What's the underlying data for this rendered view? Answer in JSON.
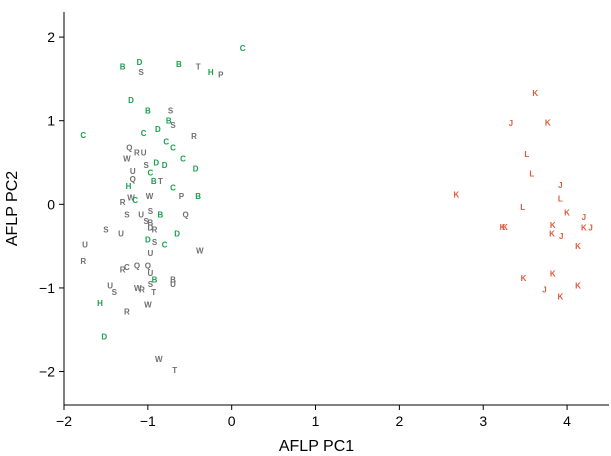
{
  "chart_data": {
    "type": "scatter",
    "xlabel": "AFLP PC1",
    "ylabel": "AFLP PC2",
    "xlim": [
      -2.0,
      4.5
    ],
    "ylim": [
      -2.4,
      2.3
    ],
    "xticks": [
      -2,
      -1,
      0,
      1,
      2,
      3,
      4
    ],
    "yticks": [
      -2,
      -1,
      0,
      1,
      2
    ],
    "tick_labels_x": [
      "−2",
      "−1",
      "0",
      "1",
      "2",
      "3",
      "4"
    ],
    "tick_labels_y": [
      "−2",
      "−1",
      "0",
      "1",
      "2"
    ],
    "grid": false,
    "colors": {
      "grey": "#6f6f6f",
      "green": "#1aa04f",
      "red": "#e05a3c"
    },
    "points": [
      {
        "label": "C",
        "x": 0.13,
        "y": 1.87,
        "color": "green"
      },
      {
        "label": "B",
        "x": -1.3,
        "y": 1.65,
        "color": "green"
      },
      {
        "label": "D",
        "x": -1.1,
        "y": 1.7,
        "color": "green"
      },
      {
        "label": "S",
        "x": -1.08,
        "y": 1.58,
        "color": "grey"
      },
      {
        "label": "B",
        "x": -0.63,
        "y": 1.68,
        "color": "green"
      },
      {
        "label": "T",
        "x": -0.4,
        "y": 1.65,
        "color": "grey"
      },
      {
        "label": "H",
        "x": -0.25,
        "y": 1.58,
        "color": "green"
      },
      {
        "label": "P",
        "x": -0.13,
        "y": 1.55,
        "color": "grey"
      },
      {
        "label": "D",
        "x": -1.2,
        "y": 1.25,
        "color": "green"
      },
      {
        "label": "B",
        "x": -1.0,
        "y": 1.12,
        "color": "green"
      },
      {
        "label": "S",
        "x": -0.73,
        "y": 1.12,
        "color": "grey"
      },
      {
        "label": "B",
        "x": -0.75,
        "y": 1.0,
        "color": "green"
      },
      {
        "label": "S",
        "x": -0.7,
        "y": 0.95,
        "color": "grey"
      },
      {
        "label": "C",
        "x": -1.77,
        "y": 0.83,
        "color": "green"
      },
      {
        "label": "C",
        "x": -1.05,
        "y": 0.85,
        "color": "green"
      },
      {
        "label": "D",
        "x": -0.88,
        "y": 0.9,
        "color": "green"
      },
      {
        "label": "R",
        "x": -0.45,
        "y": 0.82,
        "color": "grey"
      },
      {
        "label": "C",
        "x": -0.78,
        "y": 0.75,
        "color": "green"
      },
      {
        "label": "C",
        "x": -0.7,
        "y": 0.68,
        "color": "green"
      },
      {
        "label": "Q",
        "x": -1.22,
        "y": 0.68,
        "color": "grey"
      },
      {
        "label": "R",
        "x": -1.13,
        "y": 0.62,
        "color": "grey"
      },
      {
        "label": "U",
        "x": -1.05,
        "y": 0.62,
        "color": "grey"
      },
      {
        "label": "W",
        "x": -1.25,
        "y": 0.55,
        "color": "grey"
      },
      {
        "label": "C",
        "x": -0.58,
        "y": 0.55,
        "color": "green"
      },
      {
        "label": "S",
        "x": -1.02,
        "y": 0.47,
        "color": "grey"
      },
      {
        "label": "D",
        "x": -0.9,
        "y": 0.5,
        "color": "green"
      },
      {
        "label": "D",
        "x": -0.8,
        "y": 0.47,
        "color": "green"
      },
      {
        "label": "U",
        "x": -1.18,
        "y": 0.4,
        "color": "grey"
      },
      {
        "label": "D",
        "x": -0.43,
        "y": 0.43,
        "color": "green"
      },
      {
        "label": "C",
        "x": -0.97,
        "y": 0.38,
        "color": "green"
      },
      {
        "label": "Q",
        "x": -1.18,
        "y": 0.3,
        "color": "grey"
      },
      {
        "label": "B",
        "x": -0.93,
        "y": 0.28,
        "color": "green"
      },
      {
        "label": "T",
        "x": -0.85,
        "y": 0.28,
        "color": "grey"
      },
      {
        "label": "H",
        "x": -1.23,
        "y": 0.22,
        "color": "green"
      },
      {
        "label": "C",
        "x": -0.7,
        "y": 0.2,
        "color": "green"
      },
      {
        "label": "W",
        "x": -1.2,
        "y": 0.08,
        "color": "grey"
      },
      {
        "label": "C",
        "x": -1.15,
        "y": 0.05,
        "color": "green"
      },
      {
        "label": "W",
        "x": -0.98,
        "y": 0.1,
        "color": "grey"
      },
      {
        "label": "P",
        "x": -0.6,
        "y": 0.1,
        "color": "grey"
      },
      {
        "label": "B",
        "x": -0.4,
        "y": 0.1,
        "color": "green"
      },
      {
        "label": "R",
        "x": -1.3,
        "y": 0.03,
        "color": "grey"
      },
      {
        "label": "S",
        "x": -1.25,
        "y": -0.12,
        "color": "grey"
      },
      {
        "label": "U",
        "x": -1.08,
        "y": -0.12,
        "color": "grey"
      },
      {
        "label": "S",
        "x": -0.97,
        "y": -0.08,
        "color": "grey"
      },
      {
        "label": "B",
        "x": -0.85,
        "y": -0.12,
        "color": "green"
      },
      {
        "label": "Q",
        "x": -0.55,
        "y": -0.12,
        "color": "grey"
      },
      {
        "label": "S",
        "x": -1.02,
        "y": -0.2,
        "color": "grey"
      },
      {
        "label": "B",
        "x": -0.97,
        "y": -0.22,
        "color": "grey"
      },
      {
        "label": "S",
        "x": -1.5,
        "y": -0.3,
        "color": "grey"
      },
      {
        "label": "U",
        "x": -1.32,
        "y": -0.35,
        "color": "grey"
      },
      {
        "label": "D",
        "x": -0.97,
        "y": -0.28,
        "color": "grey"
      },
      {
        "label": "R",
        "x": -0.92,
        "y": -0.3,
        "color": "grey"
      },
      {
        "label": "D",
        "x": -0.65,
        "y": -0.35,
        "color": "green"
      },
      {
        "label": "D",
        "x": -1.0,
        "y": -0.42,
        "color": "green"
      },
      {
        "label": "S",
        "x": -0.92,
        "y": -0.45,
        "color": "grey"
      },
      {
        "label": "U",
        "x": -1.75,
        "y": -0.48,
        "color": "grey"
      },
      {
        "label": "C",
        "x": -0.8,
        "y": -0.48,
        "color": "green"
      },
      {
        "label": "W",
        "x": -0.38,
        "y": -0.55,
        "color": "grey"
      },
      {
        "label": "U",
        "x": -0.97,
        "y": -0.58,
        "color": "grey"
      },
      {
        "label": "R",
        "x": -1.77,
        "y": -0.68,
        "color": "grey"
      },
      {
        "label": "C",
        "x": -1.25,
        "y": -0.75,
        "color": "grey"
      },
      {
        "label": "Q",
        "x": -1.13,
        "y": -0.73,
        "color": "grey"
      },
      {
        "label": "Q",
        "x": -1.0,
        "y": -0.73,
        "color": "grey"
      },
      {
        "label": "R",
        "x": -1.3,
        "y": -0.78,
        "color": "grey"
      },
      {
        "label": "U",
        "x": -0.97,
        "y": -0.82,
        "color": "grey"
      },
      {
        "label": "B",
        "x": -0.92,
        "y": -0.9,
        "color": "green"
      },
      {
        "label": "B",
        "x": -0.7,
        "y": -0.9,
        "color": "grey"
      },
      {
        "label": "S",
        "x": -0.97,
        "y": -0.95,
        "color": "grey"
      },
      {
        "label": "U",
        "x": -0.7,
        "y": -0.95,
        "color": "grey"
      },
      {
        "label": "U",
        "x": -1.45,
        "y": -0.97,
        "color": "grey"
      },
      {
        "label": "W",
        "x": -1.12,
        "y": -1.0,
        "color": "grey"
      },
      {
        "label": "R",
        "x": -1.07,
        "y": -1.02,
        "color": "grey"
      },
      {
        "label": "T",
        "x": -0.93,
        "y": -1.05,
        "color": "grey"
      },
      {
        "label": "S",
        "x": -1.4,
        "y": -1.05,
        "color": "grey"
      },
      {
        "label": "H",
        "x": -1.57,
        "y": -1.18,
        "color": "green"
      },
      {
        "label": "W",
        "x": -1.0,
        "y": -1.2,
        "color": "grey"
      },
      {
        "label": "R",
        "x": -1.25,
        "y": -1.28,
        "color": "grey"
      },
      {
        "label": "D",
        "x": -1.52,
        "y": -1.58,
        "color": "green"
      },
      {
        "label": "W",
        "x": -0.87,
        "y": -1.85,
        "color": "grey"
      },
      {
        "label": "T",
        "x": -0.68,
        "y": -1.98,
        "color": "grey"
      },
      {
        "label": "K",
        "x": 3.62,
        "y": 1.33,
        "color": "red"
      },
      {
        "label": "J",
        "x": 3.33,
        "y": 0.97,
        "color": "red"
      },
      {
        "label": "K",
        "x": 3.77,
        "y": 0.98,
        "color": "red"
      },
      {
        "label": "L",
        "x": 3.52,
        "y": 0.6,
        "color": "red"
      },
      {
        "label": "L",
        "x": 3.58,
        "y": 0.37,
        "color": "red"
      },
      {
        "label": "J",
        "x": 3.92,
        "y": 0.23,
        "color": "red"
      },
      {
        "label": "K",
        "x": 2.68,
        "y": 0.12,
        "color": "red"
      },
      {
        "label": "L",
        "x": 3.92,
        "y": 0.07,
        "color": "red"
      },
      {
        "label": "L",
        "x": 3.47,
        "y": -0.03,
        "color": "red"
      },
      {
        "label": "K",
        "x": 4.0,
        "y": -0.1,
        "color": "red"
      },
      {
        "label": "J",
        "x": 4.2,
        "y": -0.15,
        "color": "red"
      },
      {
        "label": "K",
        "x": 3.23,
        "y": -0.27,
        "color": "red"
      },
      {
        "label": "K",
        "x": 3.26,
        "y": -0.27,
        "color": "red"
      },
      {
        "label": "K",
        "x": 3.83,
        "y": -0.25,
        "color": "red"
      },
      {
        "label": "K",
        "x": 4.2,
        "y": -0.28,
        "color": "red"
      },
      {
        "label": "J",
        "x": 4.28,
        "y": -0.28,
        "color": "red"
      },
      {
        "label": "K",
        "x": 3.82,
        "y": -0.35,
        "color": "red"
      },
      {
        "label": "J",
        "x": 3.93,
        "y": -0.38,
        "color": "red"
      },
      {
        "label": "K",
        "x": 4.13,
        "y": -0.5,
        "color": "red"
      },
      {
        "label": "K",
        "x": 3.48,
        "y": -0.88,
        "color": "red"
      },
      {
        "label": "K",
        "x": 3.83,
        "y": -0.83,
        "color": "red"
      },
      {
        "label": "J",
        "x": 3.73,
        "y": -1.02,
        "color": "red"
      },
      {
        "label": "K",
        "x": 3.92,
        "y": -1.1,
        "color": "red"
      },
      {
        "label": "K",
        "x": 4.13,
        "y": -0.97,
        "color": "red"
      }
    ]
  }
}
